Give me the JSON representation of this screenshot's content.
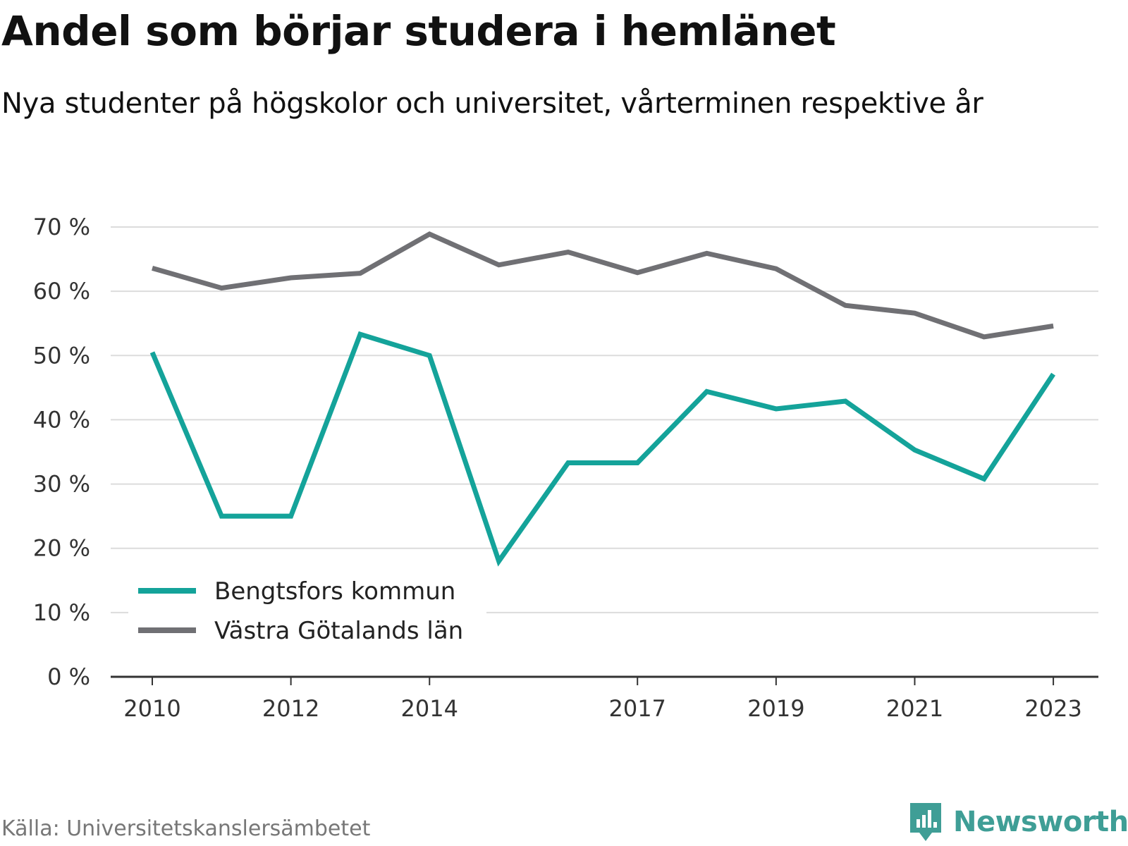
{
  "chart_data": {
    "type": "line",
    "title": "Andel som börjar studera i hemlänet",
    "subtitle": "Nya studenter på högskolor och universitet, vårterminen respektive år",
    "x": [
      2010,
      2011,
      2012,
      2013,
      2014,
      2015,
      2016,
      2017,
      2018,
      2019,
      2020,
      2021,
      2022,
      2023
    ],
    "x_tick_labels": [
      "2010",
      "2012",
      "2014",
      "2017",
      "2019",
      "2021",
      "2023"
    ],
    "x_tick_values": [
      2010,
      2012,
      2014,
      2017,
      2019,
      2021,
      2023
    ],
    "y_tick_labels": [
      "0 %",
      "10 %",
      "20 %",
      "30 %",
      "40 %",
      "50 %",
      "60 %",
      "70 %"
    ],
    "y_tick_values": [
      0,
      10,
      20,
      30,
      40,
      50,
      60,
      70
    ],
    "ylim": [
      0,
      70
    ],
    "xlim": [
      2009.4,
      2023.65
    ],
    "grid": true,
    "legend_position": "bottom-left",
    "series": [
      {
        "name": "Bengtsfors kommun",
        "color": "#14a39a",
        "values": [
          50.5,
          25,
          25,
          53.3,
          50,
          18,
          33.3,
          33.3,
          44.4,
          41.7,
          42.9,
          35.3,
          30.8,
          47.1
        ]
      },
      {
        "name": "Västra Götalands län",
        "color": "#707074",
        "values": [
          63.6,
          60.5,
          62.1,
          62.8,
          68.9,
          64.1,
          66.1,
          62.9,
          65.9,
          63.5,
          57.8,
          56.6,
          52.9,
          54.6
        ]
      }
    ]
  },
  "source": "Källa: Universitetskanslersämbetet",
  "brand": {
    "name": "Newsworthy",
    "color": "#3f9e96",
    "icon": "newsworthy-logo-icon"
  }
}
